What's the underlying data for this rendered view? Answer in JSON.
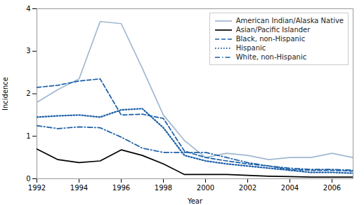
{
  "chart_data": {
    "type": "line",
    "xlabel": "Year",
    "ylabel": "Incidence",
    "x": [
      1992,
      1993,
      1994,
      1995,
      1996,
      1997,
      1998,
      1999,
      2000,
      2001,
      2002,
      2003,
      2004,
      2005,
      2006,
      2007
    ],
    "series": [
      {
        "name": "American Indian/Alaska Native",
        "color": "#a0b8d0",
        "line_style": "solid",
        "values": [
          1.8,
          2.1,
          2.35,
          3.7,
          3.65,
          2.6,
          1.5,
          0.9,
          0.5,
          0.6,
          0.55,
          0.45,
          0.5,
          0.5,
          0.6,
          0.5
        ]
      },
      {
        "name": "Asian/Pacific Islander",
        "color": "#000000",
        "line_style": "solid",
        "values": [
          0.7,
          0.45,
          0.38,
          0.42,
          0.68,
          0.55,
          0.35,
          0.1,
          0.1,
          0.1,
          0.08,
          0.06,
          0.05,
          0.04,
          0.04,
          0.04
        ]
      },
      {
        "name": "Black, non-Hispanic",
        "color": "#1a5fa8",
        "line_style": "dashed",
        "values": [
          2.15,
          2.2,
          2.3,
          2.35,
          1.5,
          1.52,
          1.42,
          0.65,
          0.5,
          0.42,
          0.35,
          0.3,
          0.22,
          0.2,
          0.2,
          0.18
        ]
      },
      {
        "name": "Hispanic",
        "color": "#1a5fa8",
        "line_style": "dotted",
        "values": [
          1.45,
          1.48,
          1.5,
          1.45,
          1.62,
          1.65,
          1.2,
          0.55,
          0.42,
          0.35,
          0.3,
          0.25,
          0.2,
          0.15,
          0.15,
          0.13
        ]
      },
      {
        "name": "White, non-Hispanic",
        "color": "#1a5fa8",
        "line_style": "dashdot",
        "values": [
          1.25,
          1.18,
          1.22,
          1.2,
          0.98,
          0.72,
          0.62,
          0.62,
          0.62,
          0.5,
          0.38,
          0.3,
          0.25,
          0.22,
          0.22,
          0.2
        ]
      }
    ],
    "xlim": [
      1992,
      2007
    ],
    "xticks": [
      1992,
      1994,
      1996,
      1998,
      2000,
      2002,
      2004,
      2006
    ],
    "ylim": [
      0,
      4
    ],
    "yticks": [
      0,
      1,
      2,
      3,
      4
    ],
    "legend": "upper right"
  }
}
